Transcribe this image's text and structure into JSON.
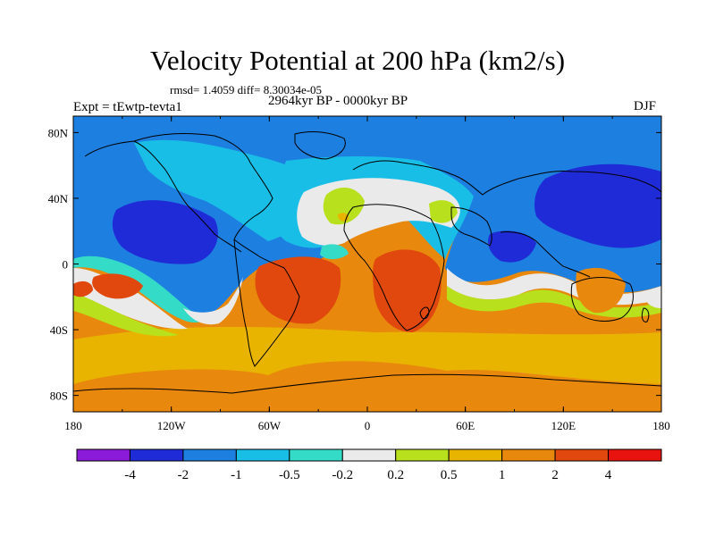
{
  "title": "Velocity Potential at 200 hPa (km2/s)",
  "stats_text": "rmsd= 1.4059 diff= 8.30034e-05",
  "experiment_text": "Expt = tEwtp-tevta1",
  "period_text": "2964kyr BP - 0000kyr BP",
  "season_text": "DJF",
  "map": {
    "projection": "cylindrical equidistant",
    "lon_range": [
      -180,
      180
    ],
    "lat_range": [
      -90,
      90
    ],
    "x_ticks": [
      {
        "lon": -180,
        "label": "180"
      },
      {
        "lon": -120,
        "label": "120W"
      },
      {
        "lon": -60,
        "label": "60W"
      },
      {
        "lon": 0,
        "label": "0"
      },
      {
        "lon": 60,
        "label": "60E"
      },
      {
        "lon": 120,
        "label": "120E"
      },
      {
        "lon": 180,
        "label": "180"
      }
    ],
    "y_ticks": [
      {
        "lat": 80,
        "label": "80N"
      },
      {
        "lat": 40,
        "label": "40N"
      },
      {
        "lat": 0,
        "label": "0"
      },
      {
        "lat": -40,
        "label": "40S"
      },
      {
        "lat": -80,
        "label": "80S"
      }
    ]
  },
  "colorbar": {
    "colors": [
      "#8c1ad9",
      "#1f2bd6",
      "#1d7fe0",
      "#19bee6",
      "#34dcc7",
      "#eaeaea",
      "#b8e01c",
      "#e8b400",
      "#e8880d",
      "#e0480e",
      "#e8120e"
    ],
    "labels": [
      "-4",
      "-2",
      "-1",
      "-0.5",
      "-0.2",
      "0.2",
      "0.5",
      "1",
      "2",
      "4"
    ]
  },
  "chart_data": {
    "type": "heatmap",
    "title": "Velocity Potential at 200 hPa (km2/s)",
    "variable": "velocity potential difference",
    "units": "km2/s",
    "levels": [
      -4,
      -2,
      -1,
      -0.5,
      -0.2,
      0.2,
      0.5,
      1,
      2,
      4
    ],
    "regions": [
      {
        "lon": -125,
        "lat": 25,
        "value": -2.5
      },
      {
        "lon": 125,
        "lat": 25,
        "value": -2.5
      },
      {
        "lon": 145,
        "lat": 42,
        "value": -2.5
      },
      {
        "lon": -40,
        "lat": 65,
        "value": -0.7
      },
      {
        "lon": -20,
        "lat": 30,
        "value": 0.5
      },
      {
        "lon": 25,
        "lat": -10,
        "value": 2.5
      },
      {
        "lon": -55,
        "lat": -12,
        "value": 2.5
      },
      {
        "lon": -160,
        "lat": -10,
        "value": 2.5
      },
      {
        "lon": 165,
        "lat": -22,
        "value": 2.0
      },
      {
        "lon": 0,
        "lat": -60,
        "value": 1.8
      }
    ]
  }
}
